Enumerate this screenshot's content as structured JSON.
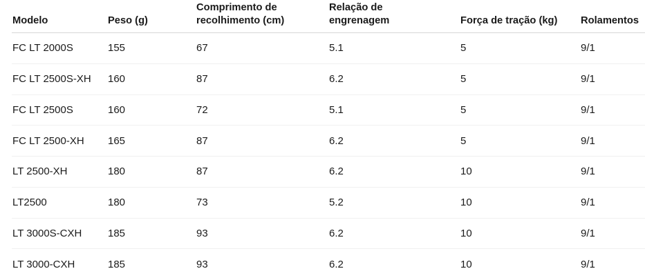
{
  "colors": {
    "background": "#ffffff",
    "text": "#1a1a1a",
    "header_divider": "#d6d6d6",
    "row_divider": "#f0f0f0"
  },
  "table": {
    "columns": [
      {
        "id": "modelo",
        "label": "Modelo"
      },
      {
        "id": "peso",
        "label": "Peso (g)"
      },
      {
        "id": "comprimento",
        "label": "Comprimento de\nrecolhimento (cm)"
      },
      {
        "id": "relacao",
        "label": "Relação de\nengrenagem"
      },
      {
        "id": "forca",
        "label": "Força de tração (kg)"
      },
      {
        "id": "rolamentos",
        "label": "Rolamentos"
      }
    ],
    "rows": [
      {
        "modelo": "FC LT 2000S",
        "peso": "155",
        "comprimento": "67",
        "relacao": "5.1",
        "forca": "5",
        "rolamentos": "9/1"
      },
      {
        "modelo": "FC LT 2500S-XH",
        "peso": "160",
        "comprimento": "87",
        "relacao": "6.2",
        "forca": "5",
        "rolamentos": "9/1"
      },
      {
        "modelo": "FC LT 2500S",
        "peso": "160",
        "comprimento": "72",
        "relacao": "5.1",
        "forca": "5",
        "rolamentos": "9/1"
      },
      {
        "modelo": "FC LT 2500-XH",
        "peso": "165",
        "comprimento": "87",
        "relacao": "6.2",
        "forca": "5",
        "rolamentos": "9/1"
      },
      {
        "modelo": "LT 2500-XH",
        "peso": "180",
        "comprimento": "87",
        "relacao": "6.2",
        "forca": "10",
        "rolamentos": "9/1"
      },
      {
        "modelo": "LT2500",
        "peso": "180",
        "comprimento": "73",
        "relacao": "5.2",
        "forca": "10",
        "rolamentos": "9/1"
      },
      {
        "modelo": "LT 3000S-CXH",
        "peso": "185",
        "comprimento": "93",
        "relacao": "6.2",
        "forca": "10",
        "rolamentos": "9/1"
      },
      {
        "modelo": "LT 3000-CXH",
        "peso": "185",
        "comprimento": "93",
        "relacao": "6.2",
        "forca": "10",
        "rolamentos": "9/1"
      }
    ]
  }
}
